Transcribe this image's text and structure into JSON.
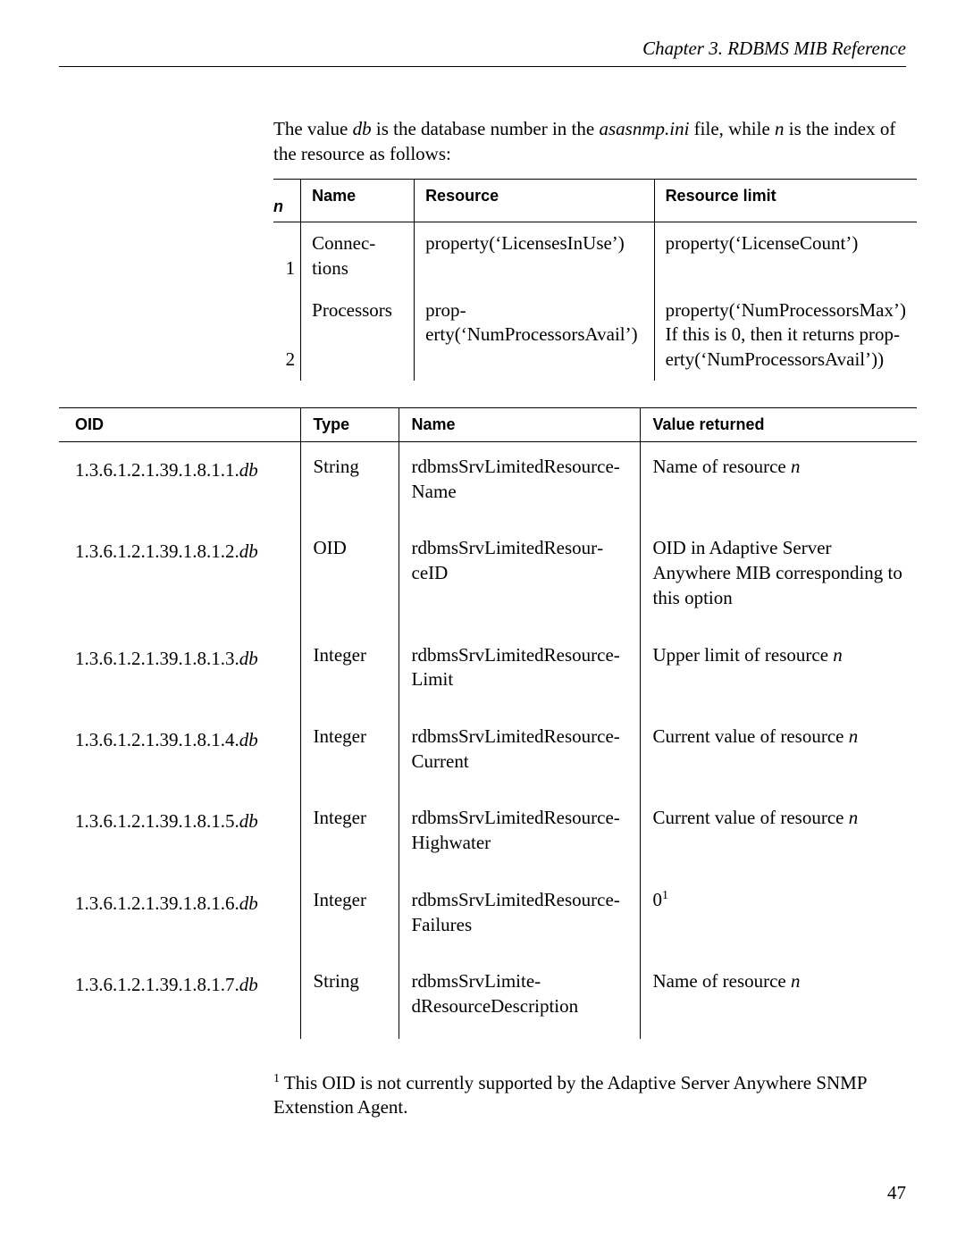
{
  "header": {
    "text": "Chapter 3.  RDBMS MIB Reference"
  },
  "intro": {
    "part1": "The value ",
    "db": "db",
    "part2": " is the database number in the ",
    "file": "asasnmp.ini",
    "part3": " file, while ",
    "n": "n",
    "part4": " is the index of the resource as follows:"
  },
  "table1": {
    "head": {
      "n": "n",
      "name": "Name",
      "resource": "Resource",
      "limit": "Resource limit"
    },
    "rows": [
      {
        "n": "1",
        "name": "Connec­tions",
        "resource": "prop­erty(‘LicensesInUse’)",
        "limit": "property(‘LicenseCount’)"
      },
      {
        "n": "2",
        "name": "Processors",
        "resource": "prop­erty(‘NumProcessorsAvail’)",
        "limit": "property(‘NumProcessorsMax’) If this is 0, then it returns prop­erty(‘NumProcessorsAvail’))"
      }
    ]
  },
  "table2": {
    "head": {
      "oid": "OID",
      "type": "Type",
      "name": "Name",
      "value": "Value returned"
    },
    "rows": [
      {
        "oid": "1.3.6.1.2.1.39.1.8.1.1.",
        "db": "db",
        "type": "String",
        "name": "rdbmsSrvLimitedResource­Name",
        "value_pre": "Name of resource ",
        "value_it": "n",
        "value_post": ""
      },
      {
        "oid": "1.3.6.1.2.1.39.1.8.1.2.",
        "db": "db",
        "type": "OID",
        "name": "rdbmsSrvLimitedResour­ceID",
        "value_pre": "OID in Adaptive Server Anywhere MIB corresponding to this option",
        "value_it": "",
        "value_post": ""
      },
      {
        "oid": "1.3.6.1.2.1.39.1.8.1.3.",
        "db": "db",
        "type": "Integer",
        "name": "rdbmsSrvLimitedResource­Limit",
        "value_pre": "Upper limit of resource ",
        "value_it": "n",
        "value_post": ""
      },
      {
        "oid": "1.3.6.1.2.1.39.1.8.1.4.",
        "db": "db",
        "type": "Integer",
        "name": "rdbmsSrvLimitedResource­Current",
        "value_pre": "Current value of resource ",
        "value_it": "n",
        "value_post": ""
      },
      {
        "oid": "1.3.6.1.2.1.39.1.8.1.5.",
        "db": "db",
        "type": "Integer",
        "name": "rdbmsSrvLimitedResource­Highwater",
        "value_pre": "Current value of resource ",
        "value_it": "n",
        "value_post": ""
      },
      {
        "oid": "1.3.6.1.2.1.39.1.8.1.6.",
        "db": "db",
        "type": "Integer",
        "name": "rdbmsSrvLimitedResource­Failures",
        "value_pre": "0",
        "value_it": "",
        "value_post": "",
        "sup": "1"
      },
      {
        "oid": "1.3.6.1.2.1.39.1.8.1.7.",
        "db": "db",
        "type": "String",
        "name": "rdbmsSrvLimite­dResourceDescription",
        "value_pre": "Name of resource ",
        "value_it": "n",
        "value_post": ""
      }
    ]
  },
  "footnote": {
    "sup": "1",
    "text": " This OID is not currently supported by the Adaptive Server Anywhere SNMP Extenstion Agent."
  },
  "pagenum": "47"
}
